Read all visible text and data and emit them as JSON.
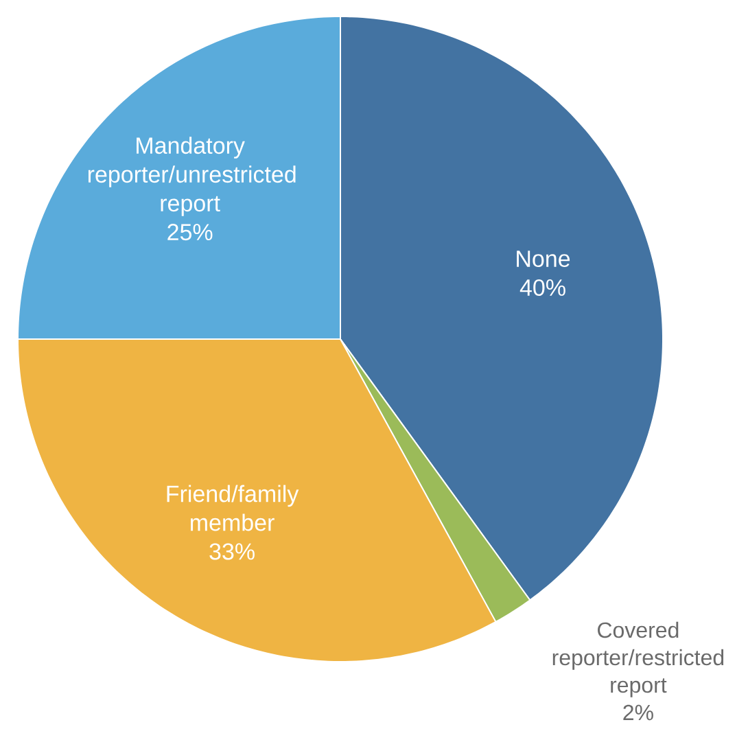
{
  "chart_data": {
    "type": "pie",
    "categories": [
      "None",
      "Covered reporter/restricted report",
      "Friend/family member",
      "Mandatory reporter/unrestricted report"
    ],
    "values": [
      40,
      2,
      33,
      25
    ],
    "value_labels": [
      "40%",
      "2%",
      "33%",
      "25%"
    ],
    "colors": [
      "#4373a2",
      "#9bbb59",
      "#efb443",
      "#5aabdb"
    ]
  }
}
